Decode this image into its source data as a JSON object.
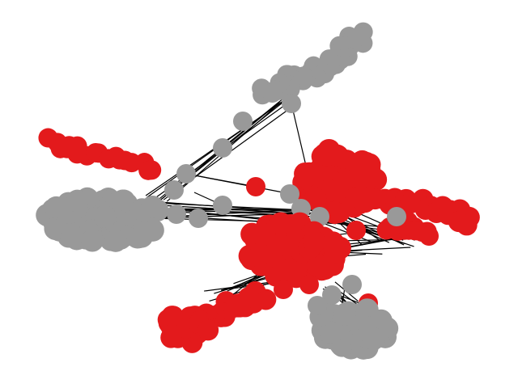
{
  "colors": {
    "red": "#e31a1c",
    "gray": "#999999",
    "edge": "#000000",
    "background": "#ffffff"
  },
  "clusters": [
    {
      "id": "gray-top-arm",
      "color": "gray"
    },
    {
      "id": "gray-left-blob",
      "color": "gray"
    },
    {
      "id": "gray-bottom-blob",
      "color": "gray"
    },
    {
      "id": "red-left-arm",
      "color": "red"
    },
    {
      "id": "red-central-hub",
      "color": "red"
    },
    {
      "id": "red-lower-hub",
      "color": "red"
    },
    {
      "id": "red-bottom-arm",
      "color": "red"
    },
    {
      "id": "red-right-arm",
      "color": "red"
    }
  ]
}
